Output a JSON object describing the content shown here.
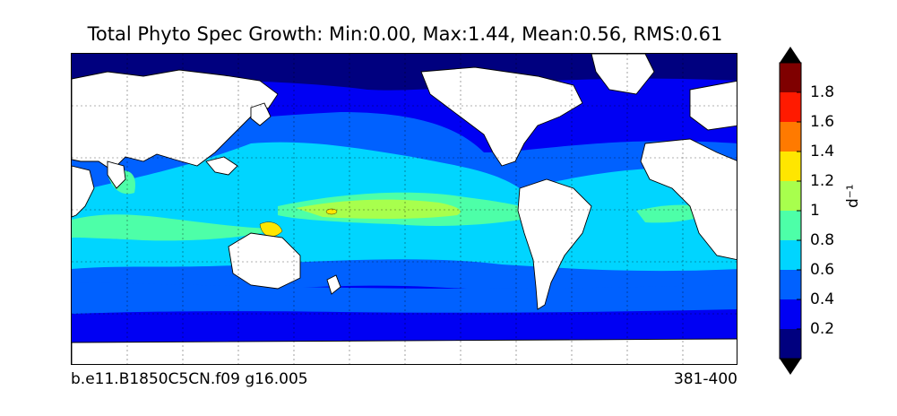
{
  "title": "Total Phyto Spec Growth: Min:0.00, Max:1.44, Mean:0.56, RMS:0.61",
  "footer": {
    "case_name": "b.e11.B1850C5CN.f09 g16.005",
    "year_range": "381-400"
  },
  "colorbar": {
    "unit_label": "d⁻¹",
    "ticks": [
      "0.2",
      "0.4",
      "0.6",
      "0.8",
      "1",
      "1.2",
      "1.4",
      "1.6",
      "1.8"
    ],
    "levels": [
      0.0,
      0.2,
      0.4,
      0.6,
      0.8,
      1.0,
      1.2,
      1.4,
      1.6,
      1.8,
      2.0
    ],
    "colors": [
      "#00007f",
      "#0000f3",
      "#0061ff",
      "#00d5ff",
      "#4dffa8",
      "#a8ff4d",
      "#ffe600",
      "#ff7a00",
      "#ff1a00",
      "#7f0000"
    ],
    "extend": "both"
  },
  "map": {
    "projection": "cylindrical",
    "center": "Pacific",
    "land_color": "#ffffff",
    "gridlines": "dotted"
  }
}
